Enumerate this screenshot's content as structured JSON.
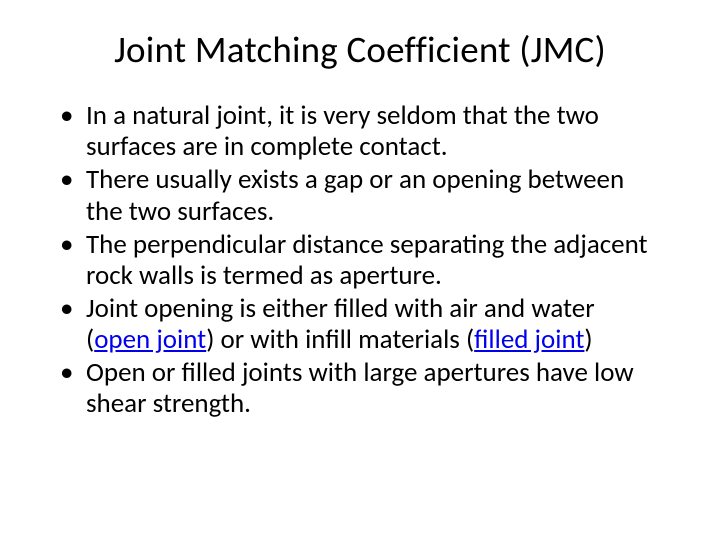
{
  "title": "Joint Matching Coefficient (JMC)",
  "bullets": [
    {
      "pre": "In a natural joint, it is very seldom that the two surfaces are in complete contact."
    },
    {
      "pre": "There usually exists a gap or an opening between the two surfaces."
    },
    {
      "pre": "The perpendicular distance separating the adjacent rock walls is termed as aperture."
    },
    {
      "pre": "Joint opening is either filled with air and water (",
      "link1": "open joint",
      "mid": ") or with infill materials (",
      "link2": "filled joint",
      "post": ")"
    },
    {
      "pre": "Open or filled joints with large apertures have low shear strength."
    }
  ],
  "colors": {
    "text": "#000000",
    "link": "#0000ee",
    "background": "#ffffff"
  },
  "typography": {
    "title_fontsize": 37,
    "body_fontsize": 27,
    "font_family": "Calibri"
  }
}
